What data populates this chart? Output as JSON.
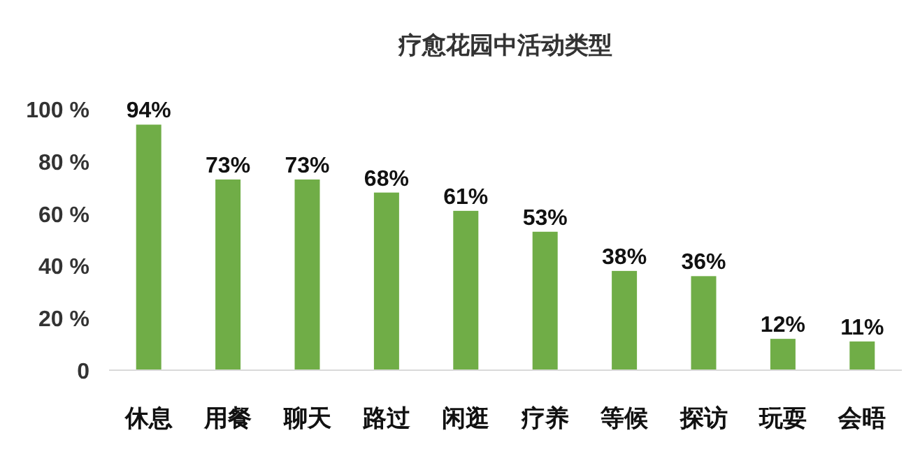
{
  "chart_data": {
    "type": "bar",
    "title": "疗愈花园中活动类型",
    "categories": [
      "休息",
      "用餐",
      "聊天",
      "路过",
      "闲逛",
      "疗养",
      "等候",
      "探访",
      "玩耍",
      "会晤"
    ],
    "values": [
      94,
      73,
      73,
      68,
      61,
      53,
      38,
      36,
      12,
      11
    ],
    "value_labels": [
      "94%",
      "73%",
      "73%",
      "68%",
      "61%",
      "53%",
      "38%",
      "36%",
      "12%",
      "11%"
    ],
    "color": "#70ad47",
    "ylim": [
      0,
      100
    ],
    "yticks": [
      {
        "value": 0,
        "label": "0"
      },
      {
        "value": 20,
        "label": "20 %"
      },
      {
        "value": 40,
        "label": "40 %"
      },
      {
        "value": 60,
        "label": "60 %"
      },
      {
        "value": 80,
        "label": "80 %"
      },
      {
        "value": 100,
        "label": "100 %"
      }
    ],
    "grid": false
  }
}
